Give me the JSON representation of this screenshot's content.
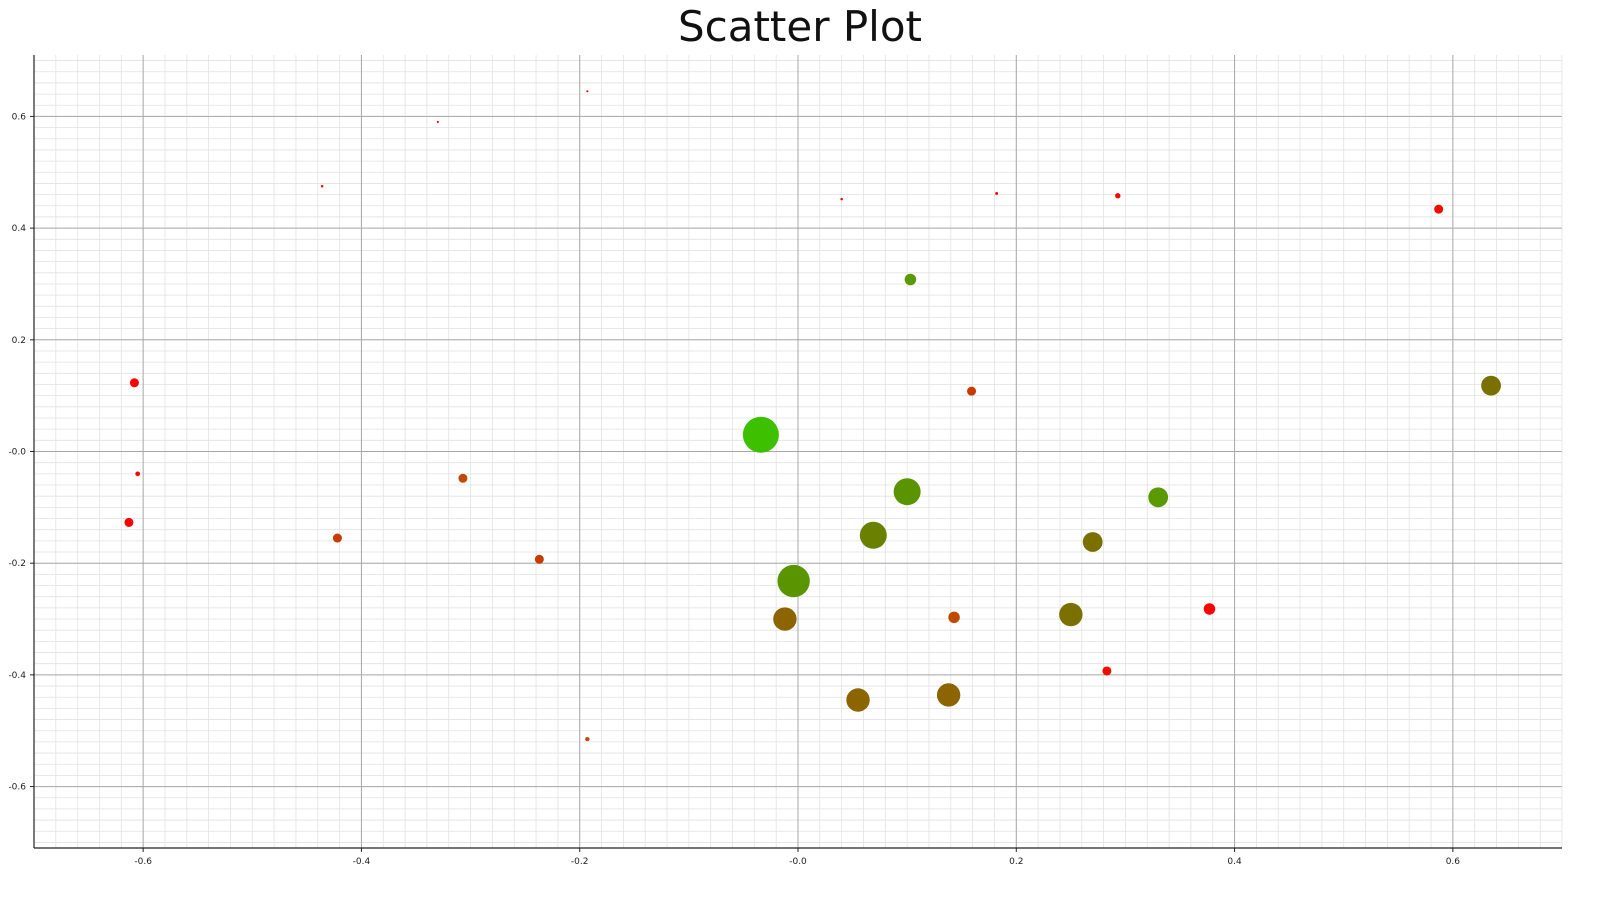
{
  "chart_data": {
    "type": "scatter",
    "title": "Scatter Plot",
    "xlabel": "",
    "ylabel": "",
    "xlim": [
      -0.7,
      0.7
    ],
    "ylim": [
      -0.71,
      0.71
    ],
    "grid": true,
    "minor_grid": true,
    "x_ticks": [
      -0.6,
      -0.4,
      -0.2,
      0.0,
      0.2,
      0.4,
      0.6
    ],
    "x_tick_labels": [
      "-0.6",
      "-0.4",
      "-0.2",
      "-0.0",
      "0.2",
      "0.4",
      "0.6"
    ],
    "y_ticks": [
      0.6,
      0.4,
      0.2,
      0.0,
      -0.2,
      -0.4,
      -0.6
    ],
    "y_tick_labels": [
      "0.6",
      "0.4",
      "0.2",
      "-0.0",
      "-0.2",
      "-0.4",
      "-0.6"
    ],
    "points": [
      {
        "x": -0.193,
        "y": 0.645,
        "size": 0.6,
        "color": "#ff0000"
      },
      {
        "x": -0.33,
        "y": 0.59,
        "size": 0.6,
        "color": "#ff0000"
      },
      {
        "x": -0.436,
        "y": 0.475,
        "size": 0.7,
        "color": "#ff0000"
      },
      {
        "x": 0.04,
        "y": 0.452,
        "size": 0.7,
        "color": "#ff0000"
      },
      {
        "x": 0.182,
        "y": 0.462,
        "size": 0.8,
        "color": "#ff0000"
      },
      {
        "x": 0.293,
        "y": 0.458,
        "size": 1.5,
        "color": "#f20a00"
      },
      {
        "x": 0.587,
        "y": 0.434,
        "size": 2.5,
        "color": "#f20a00"
      },
      {
        "x": 0.103,
        "y": 0.308,
        "size": 3.2,
        "color": "#5a9a00"
      },
      {
        "x": -0.608,
        "y": 0.123,
        "size": 2.5,
        "color": "#ff0000"
      },
      {
        "x": 0.159,
        "y": 0.108,
        "size": 2.5,
        "color": "#c83a00"
      },
      {
        "x": 0.635,
        "y": 0.118,
        "size": 5.5,
        "color": "#7a7000"
      },
      {
        "x": -0.034,
        "y": 0.03,
        "size": 10.0,
        "color": "#3cc000"
      },
      {
        "x": -0.605,
        "y": -0.04,
        "size": 1.3,
        "color": "#f00a00"
      },
      {
        "x": -0.307,
        "y": -0.048,
        "size": 2.5,
        "color": "#c04a00"
      },
      {
        "x": 0.1,
        "y": -0.072,
        "size": 7.5,
        "color": "#5a9400"
      },
      {
        "x": 0.33,
        "y": -0.082,
        "size": 5.5,
        "color": "#5a9a00"
      },
      {
        "x": -0.613,
        "y": -0.127,
        "size": 2.5,
        "color": "#ff0000"
      },
      {
        "x": -0.422,
        "y": -0.155,
        "size": 2.5,
        "color": "#c83a00"
      },
      {
        "x": 0.069,
        "y": -0.15,
        "size": 7.5,
        "color": "#6a8000"
      },
      {
        "x": 0.27,
        "y": -0.162,
        "size": 5.5,
        "color": "#7a7000"
      },
      {
        "x": -0.237,
        "y": -0.193,
        "size": 2.5,
        "color": "#c83a00"
      },
      {
        "x": -0.004,
        "y": -0.232,
        "size": 9.0,
        "color": "#5a9400"
      },
      {
        "x": 0.377,
        "y": -0.282,
        "size": 3.2,
        "color": "#ff0000"
      },
      {
        "x": -0.012,
        "y": -0.3,
        "size": 6.5,
        "color": "#8c6400"
      },
      {
        "x": 0.143,
        "y": -0.297,
        "size": 3.2,
        "color": "#c04a00"
      },
      {
        "x": 0.25,
        "y": -0.292,
        "size": 6.5,
        "color": "#7a7000"
      },
      {
        "x": 0.283,
        "y": -0.393,
        "size": 2.5,
        "color": "#f00a00"
      },
      {
        "x": 0.055,
        "y": -0.445,
        "size": 6.5,
        "color": "#8c6400"
      },
      {
        "x": 0.138,
        "y": -0.436,
        "size": 6.5,
        "color": "#8c6400"
      },
      {
        "x": -0.193,
        "y": -0.515,
        "size": 1.2,
        "color": "#c04a00"
      }
    ]
  }
}
